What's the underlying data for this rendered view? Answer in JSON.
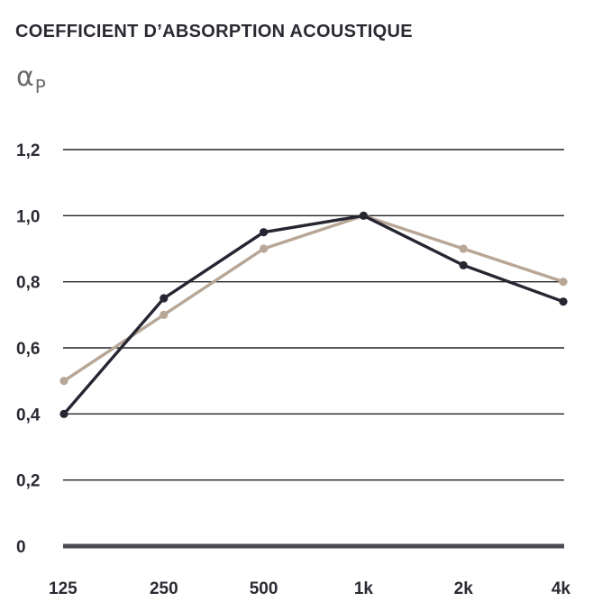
{
  "chart_data": {
    "type": "line",
    "title": "COEFFICIENT D’ABSORPTION ACOUSTIQUE",
    "ylabel_symbol": "α",
    "ylabel_subscript": "P",
    "xlabel": "",
    "categories": [
      "125",
      "250",
      "500",
      "1k",
      "2k",
      "4k"
    ],
    "y_ticks": [
      "0",
      "0,2",
      "0,4",
      "0,6",
      "0,8",
      "1,0",
      "1,2"
    ],
    "y_tick_values": [
      0,
      0.2,
      0.4,
      0.6,
      0.8,
      1.0,
      1.2
    ],
    "ylim": [
      0,
      1.2
    ],
    "grid": true,
    "legend": "none",
    "series": [
      {
        "color": "#262633",
        "values": [
          0.4,
          0.75,
          0.95,
          1.0,
          0.85,
          0.74
        ]
      },
      {
        "color": "#b8a696",
        "values": [
          0.5,
          0.7,
          0.9,
          1.0,
          0.9,
          0.8
        ]
      }
    ],
    "colors": {
      "grid": "#222228",
      "baseline": "#4a4a52"
    }
  }
}
